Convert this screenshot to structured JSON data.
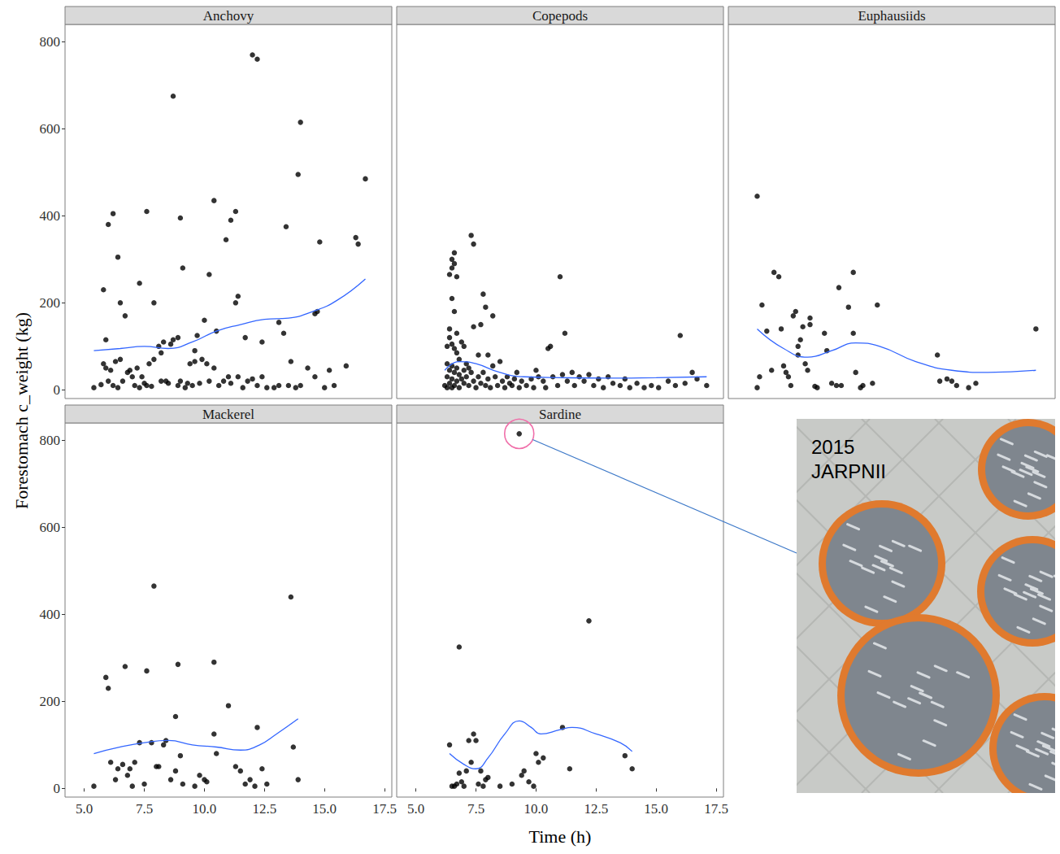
{
  "chart_data": [
    {
      "type": "scatter",
      "title": "Anchovy",
      "series": [
        {
          "type": "scatter",
          "color": "#000000",
          "marker": "circle",
          "x": [
            5.4,
            5.7,
            5.8,
            5.9,
            6.0,
            6.1,
            6.2,
            6.3,
            6.4,
            6.5,
            6.6,
            6.8,
            6.9,
            7.0,
            7.1,
            7.2,
            7.3,
            7.4,
            7.5,
            7.6,
            7.7,
            7.8,
            7.9,
            8.1,
            8.2,
            8.3,
            8.4,
            8.5,
            8.6,
            8.7,
            8.9,
            9.0,
            9.2,
            9.3,
            9.4,
            9.5,
            9.6,
            9.8,
            9.9,
            10.1,
            10.2,
            10.4,
            10.6,
            10.8,
            11.0,
            11.1,
            11.4,
            11.6,
            11.8,
            12.0,
            12.2,
            12.4,
            12.6,
            12.9,
            13.1,
            13.5,
            13.8,
            14.0,
            14.3,
            14.6,
            15.0,
            15.2,
            15.4,
            15.9,
            5.8,
            5.9,
            6.0,
            6.2,
            6.4,
            6.5,
            6.7,
            7.3,
            7.6,
            7.9,
            8.7,
            8.9,
            9.0,
            9.1,
            9.6,
            10.0,
            10.2,
            10.4,
            10.5,
            10.9,
            11.1,
            11.3,
            11.3,
            11.4,
            11.7,
            12.0,
            12.2,
            12.4,
            13.1,
            13.3,
            13.4,
            13.6,
            13.9,
            14.0,
            14.6,
            14.8,
            16.3,
            16.4,
            16.7,
            14.7,
            8.2,
            9.7
          ],
          "values": [
            5,
            12,
            60,
            50,
            20,
            45,
            10,
            65,
            5,
            70,
            20,
            40,
            45,
            30,
            10,
            50,
            5,
            30,
            15,
            10,
            60,
            8,
            70,
            100,
            20,
            110,
            20,
            15,
            105,
            115,
            10,
            20,
            5,
            15,
            60,
            10,
            65,
            15,
            70,
            60,
            20,
            50,
            10,
            20,
            30,
            15,
            30,
            5,
            20,
            25,
            10,
            30,
            5,
            5,
            10,
            10,
            5,
            10,
            50,
            30,
            5,
            45,
            10,
            55,
            230,
            115,
            380,
            405,
            305,
            200,
            170,
            245,
            410,
            200,
            675,
            120,
            395,
            280,
            90,
            160,
            265,
            435,
            135,
            345,
            390,
            410,
            200,
            215,
            120,
            770,
            760,
            110,
            155,
            130,
            375,
            65,
            495,
            615,
            175,
            340,
            350,
            335,
            485,
            180,
            85,
            125
          ]
        },
        {
          "type": "line",
          "color": "#3366ff",
          "line_style": "solid",
          "x": [
            5.4,
            6.5,
            7.5,
            8.5,
            9.5,
            10.5,
            11.5,
            12.5,
            13.5,
            14.5,
            15.5,
            16.7
          ],
          "values": [
            90,
            95,
            100,
            95,
            110,
            135,
            150,
            162,
            165,
            180,
            205,
            255
          ]
        }
      ]
    },
    {
      "type": "scatter",
      "title": "Copepods",
      "series": [
        {
          "type": "scatter",
          "color": "#000000",
          "marker": "circle",
          "x": [
            6.3,
            6.4,
            6.5,
            6.5,
            6.6,
            6.6,
            6.7,
            6.5,
            6.4,
            6.6,
            6.7,
            7.3,
            7.4,
            7.8,
            7.9,
            7.7,
            7.4,
            8.2,
            8.0,
            8.5,
            11.0,
            11.2,
            10.6,
            16.0,
            6.4,
            6.5,
            6.6,
            6.7,
            6.8,
            6.3,
            6.9,
            7.1,
            7.6,
            7.0,
            6.2,
            6.3,
            6.3,
            6.4,
            6.4,
            6.5,
            6.5,
            6.5,
            6.6,
            6.6,
            6.7,
            6.7,
            6.8,
            6.8,
            6.9,
            7.0,
            7.0,
            7.1,
            7.2,
            7.3,
            7.4,
            7.5,
            7.6,
            7.7,
            7.8,
            7.9,
            8.0,
            8.1,
            8.3,
            8.4,
            8.6,
            8.7,
            8.8,
            8.9,
            9.0,
            9.1,
            9.3,
            9.4,
            9.6,
            9.8,
            9.9,
            10.1,
            10.3,
            10.4,
            10.7,
            10.9,
            11.1,
            11.3,
            11.5,
            11.6,
            11.8,
            12.0,
            12.2,
            12.4,
            12.6,
            12.8,
            13.0,
            13.2,
            13.5,
            13.7,
            13.9,
            14.2,
            14.5,
            14.8,
            15.1,
            15.5,
            15.8,
            16.2,
            16.5,
            16.7,
            17.1,
            7.2,
            8.2,
            9.2,
            10.0,
            10.5
          ],
          "values": [
            100,
            265,
            280,
            300,
            315,
            290,
            260,
            210,
            140,
            180,
            130,
            355,
            335,
            220,
            190,
            150,
            145,
            170,
            80,
            65,
            260,
            130,
            100,
            125,
            120,
            105,
            95,
            85,
            70,
            60,
            110,
            60,
            80,
            100,
            10,
            30,
            5,
            45,
            15,
            55,
            25,
            5,
            40,
            10,
            50,
            20,
            35,
            5,
            25,
            15,
            45,
            30,
            10,
            40,
            20,
            5,
            30,
            15,
            40,
            10,
            25,
            5,
            30,
            10,
            20,
            5,
            30,
            15,
            10,
            25,
            5,
            20,
            10,
            25,
            5,
            30,
            20,
            5,
            30,
            10,
            35,
            20,
            40,
            10,
            30,
            20,
            35,
            10,
            25,
            5,
            30,
            15,
            10,
            25,
            5,
            15,
            5,
            10,
            5,
            20,
            10,
            15,
            40,
            25,
            10,
            50,
            55,
            40,
            45,
            95
          ]
        },
        {
          "type": "line",
          "color": "#3366ff",
          "line_style": "solid",
          "x": [
            6.2,
            6.8,
            7.5,
            8.5,
            9.5,
            11,
            13,
            15,
            17.1
          ],
          "values": [
            45,
            65,
            60,
            40,
            30,
            28,
            27,
            28,
            30
          ]
        }
      ]
    },
    {
      "type": "scatter",
      "title": "Euphausiids",
      "series": [
        {
          "type": "scatter",
          "color": "#000000",
          "marker": "circle",
          "x": [
            5.4,
            5.6,
            5.5,
            5.4,
            5.8,
            6.0,
            6.1,
            6.3,
            6.4,
            6.5,
            6.6,
            6.7,
            6.8,
            6.9,
            7.0,
            7.1,
            7.1,
            7.2,
            7.3,
            7.4,
            7.5,
            7.6,
            7.6,
            7.8,
            7.9,
            8.2,
            8.3,
            8.5,
            8.7,
            8.8,
            8.9,
            9.2,
            9.4,
            9.4,
            9.5,
            9.7,
            9.8,
            10.2,
            10.4,
            12.9,
            13.0,
            13.3,
            13.5,
            13.7,
            14.2,
            17.0,
            14.5
          ],
          "values": [
            445,
            195,
            30,
            5,
            135,
            45,
            270,
            260,
            140,
            55,
            40,
            30,
            10,
            170,
            180,
            100,
            80,
            115,
            145,
            60,
            45,
            165,
            150,
            8,
            5,
            130,
            90,
            15,
            10,
            235,
            10,
            190,
            270,
            130,
            40,
            5,
            10,
            15,
            195,
            80,
            20,
            25,
            20,
            10,
            5,
            140,
            15
          ]
        },
        {
          "type": "line",
          "color": "#3366ff",
          "line_style": "solid",
          "x": [
            5.4,
            6.5,
            7.5,
            8.5,
            9.5,
            10.5,
            12,
            13.5,
            15,
            17
          ],
          "values": [
            140,
            95,
            75,
            90,
            108,
            100,
            65,
            45,
            40,
            45
          ]
        }
      ]
    },
    {
      "type": "scatter",
      "title": "Mackerel",
      "series": [
        {
          "type": "scatter",
          "color": "#000000",
          "marker": "circle",
          "x": [
            5.4,
            5.9,
            6.0,
            6.1,
            6.3,
            6.4,
            6.6,
            6.7,
            6.8,
            6.9,
            7.0,
            7.1,
            7.3,
            7.5,
            7.6,
            7.8,
            7.9,
            8.0,
            8.1,
            8.3,
            8.4,
            8.6,
            8.8,
            8.8,
            8.9,
            9.0,
            9.1,
            9.6,
            9.8,
            10.0,
            10.1,
            10.4,
            10.4,
            10.5,
            11.0,
            11.3,
            11.5,
            11.7,
            11.9,
            12.2,
            12.4,
            12.6,
            13.6,
            13.7,
            13.9,
            12.1
          ],
          "values": [
            5,
            255,
            230,
            60,
            20,
            45,
            55,
            280,
            30,
            45,
            5,
            60,
            105,
            10,
            270,
            105,
            465,
            50,
            50,
            100,
            110,
            20,
            40,
            165,
            285,
            75,
            10,
            5,
            30,
            20,
            15,
            125,
            290,
            80,
            190,
            50,
            40,
            10,
            20,
            140,
            45,
            10,
            440,
            95,
            20,
            5
          ]
        },
        {
          "type": "line",
          "color": "#3366ff",
          "line_style": "solid",
          "x": [
            5.4,
            6.5,
            7.5,
            8.5,
            9.5,
            10.5,
            11.5,
            12.3,
            13,
            13.9
          ],
          "values": [
            80,
            95,
            105,
            110,
            100,
            95,
            88,
            100,
            125,
            160
          ]
        }
      ]
    },
    {
      "type": "scatter",
      "title": "Sardine",
      "series": [
        {
          "type": "scatter",
          "color": "#000000",
          "marker": "circle",
          "x": [
            6.4,
            6.6,
            6.7,
            6.8,
            6.8,
            6.9,
            7.0,
            7.1,
            7.2,
            7.3,
            7.4,
            7.5,
            7.6,
            7.7,
            7.8,
            7.9,
            8.0,
            8.5,
            9.0,
            9.3,
            9.4,
            9.5,
            9.7,
            10.0,
            10.1,
            10.3,
            11.1,
            11.4,
            12.2,
            13.7,
            14.0,
            9.9,
            6.5
          ],
          "values": [
            100,
            5,
            10,
            325,
            35,
            15,
            5,
            40,
            110,
            60,
            125,
            110,
            10,
            40,
            5,
            20,
            25,
            5,
            10,
            815,
            30,
            40,
            15,
            80,
            60,
            70,
            140,
            45,
            385,
            75,
            45,
            5,
            5
          ]
        },
        {
          "type": "line",
          "color": "#3366ff",
          "line_style": "solid",
          "x": [
            6.4,
            7.0,
            7.5,
            8.0,
            8.7,
            9.3,
            9.8,
            10.2,
            11,
            11.5,
            12.5,
            13.5,
            14.0
          ],
          "values": [
            80,
            55,
            45,
            70,
            125,
            155,
            140,
            125,
            135,
            140,
            125,
            105,
            85
          ]
        }
      ]
    }
  ],
  "xlabel": "Time (h)",
  "ylabel": "Forestomach c_weight (kg)",
  "xlim": [
    4.2,
    17.8
  ],
  "ylim": [
    -20,
    840
  ],
  "xticks": [
    {
      "value": 5,
      "label": "5.0"
    },
    7.5,
    {
      "value": 10,
      "label": "10.0"
    },
    12.5,
    {
      "value": 15,
      "label": "15.0"
    },
    17.5
  ],
  "yticks": [
    0,
    200,
    400,
    600,
    800
  ],
  "grid": false,
  "annotation": {
    "text": "2015 JARPNII",
    "panel": "Sardine",
    "x": 9.3,
    "y": 815
  }
}
